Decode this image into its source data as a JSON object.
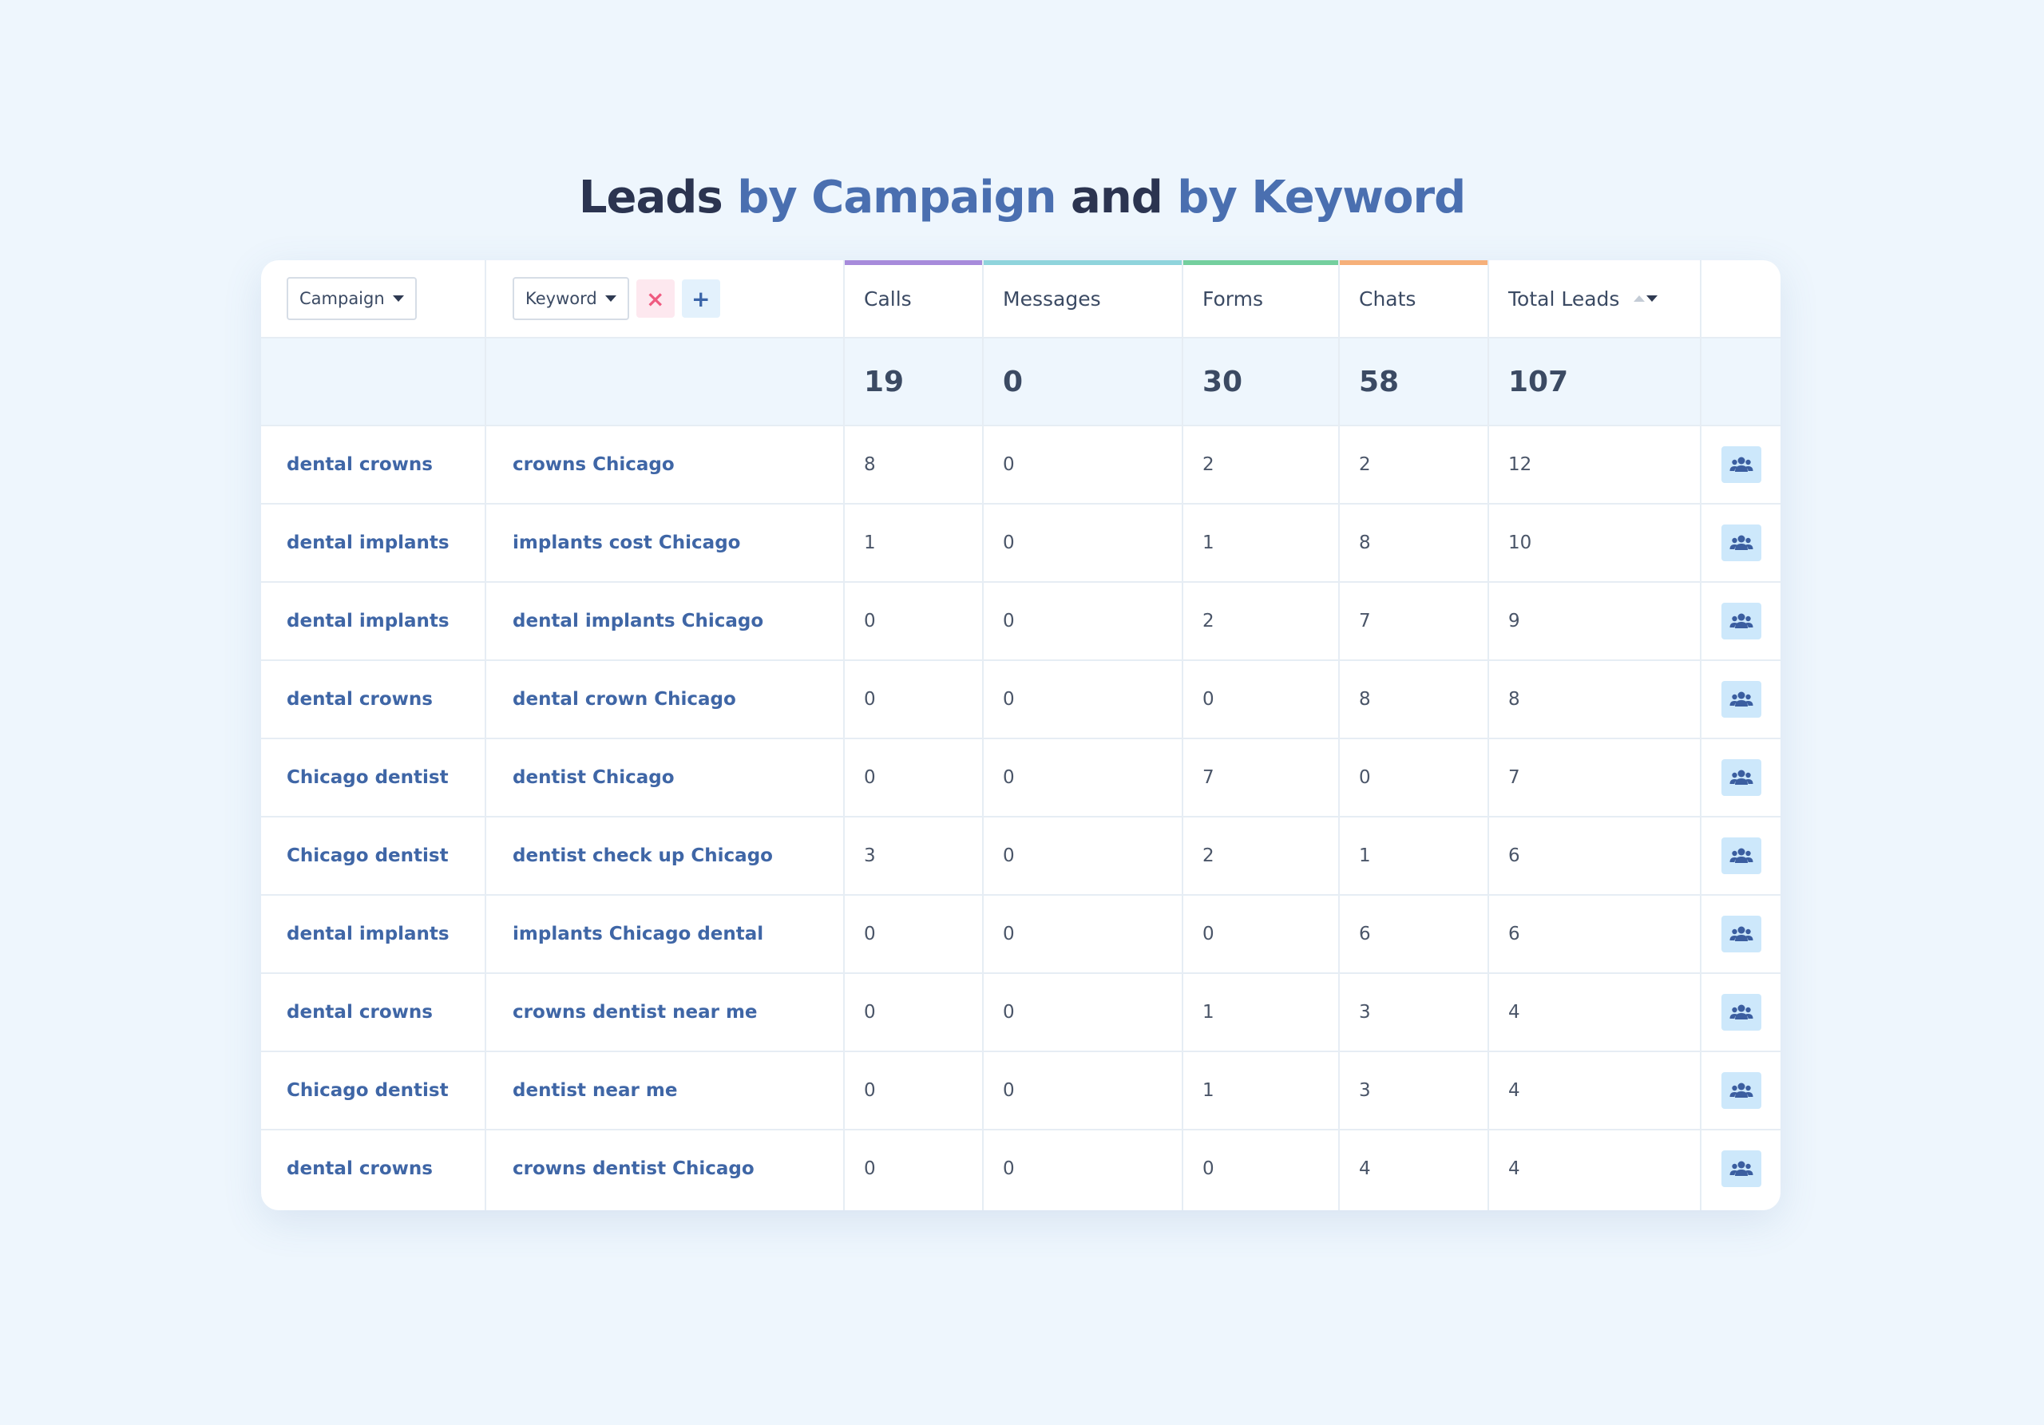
{
  "title": {
    "part1": "Leads ",
    "part2": "by Campaign",
    "part3": " and ",
    "part4": "by Keyword"
  },
  "filters": {
    "campaign_label": "Campaign",
    "keyword_label": "Keyword",
    "remove_symbol": "×",
    "add_symbol": "+"
  },
  "columns": {
    "calls": "Calls",
    "messages": "Messages",
    "forms": "Forms",
    "chats": "Chats",
    "total": "Total Leads"
  },
  "accent_colors": {
    "calls": "#a78bdb",
    "messages": "#8fd4dc",
    "forms": "#74cf9e",
    "chats": "#f6b07a"
  },
  "totals": {
    "calls": "19",
    "messages": "0",
    "forms": "30",
    "chats": "58",
    "total": "107"
  },
  "rows": [
    {
      "campaign": "dental crowns",
      "keyword": "crowns Chicago",
      "calls": "8",
      "messages": "0",
      "forms": "2",
      "chats": "2",
      "total": "12"
    },
    {
      "campaign": "dental implants",
      "keyword": "implants cost Chicago",
      "calls": "1",
      "messages": "0",
      "forms": "1",
      "chats": "8",
      "total": "10"
    },
    {
      "campaign": "dental implants",
      "keyword": "dental implants Chicago",
      "calls": "0",
      "messages": "0",
      "forms": "2",
      "chats": "7",
      "total": "9"
    },
    {
      "campaign": "dental crowns",
      "keyword": "dental crown Chicago",
      "calls": "0",
      "messages": "0",
      "forms": "0",
      "chats": "8",
      "total": "8"
    },
    {
      "campaign": "Chicago dentist",
      "keyword": "dentist Chicago",
      "calls": "0",
      "messages": "0",
      "forms": "7",
      "chats": "0",
      "total": "7"
    },
    {
      "campaign": "Chicago dentist",
      "keyword": "dentist check up Chicago",
      "calls": "3",
      "messages": "0",
      "forms": "2",
      "chats": "1",
      "total": "6"
    },
    {
      "campaign": "dental implants",
      "keyword": "implants Chicago dental",
      "calls": "0",
      "messages": "0",
      "forms": "0",
      "chats": "6",
      "total": "6"
    },
    {
      "campaign": "dental crowns",
      "keyword": "crowns dentist near me",
      "calls": "0",
      "messages": "0",
      "forms": "1",
      "chats": "3",
      "total": "4"
    },
    {
      "campaign": "Chicago dentist",
      "keyword": "dentist near me",
      "calls": "0",
      "messages": "0",
      "forms": "1",
      "chats": "3",
      "total": "4"
    },
    {
      "campaign": "dental crowns",
      "keyword": "crowns dentist Chicago",
      "calls": "0",
      "messages": "0",
      "forms": "0",
      "chats": "4",
      "total": "4"
    }
  ],
  "icons": {
    "row_action": "users-icon",
    "sort": "sort-icon",
    "dropdown": "chevron-down-icon"
  }
}
